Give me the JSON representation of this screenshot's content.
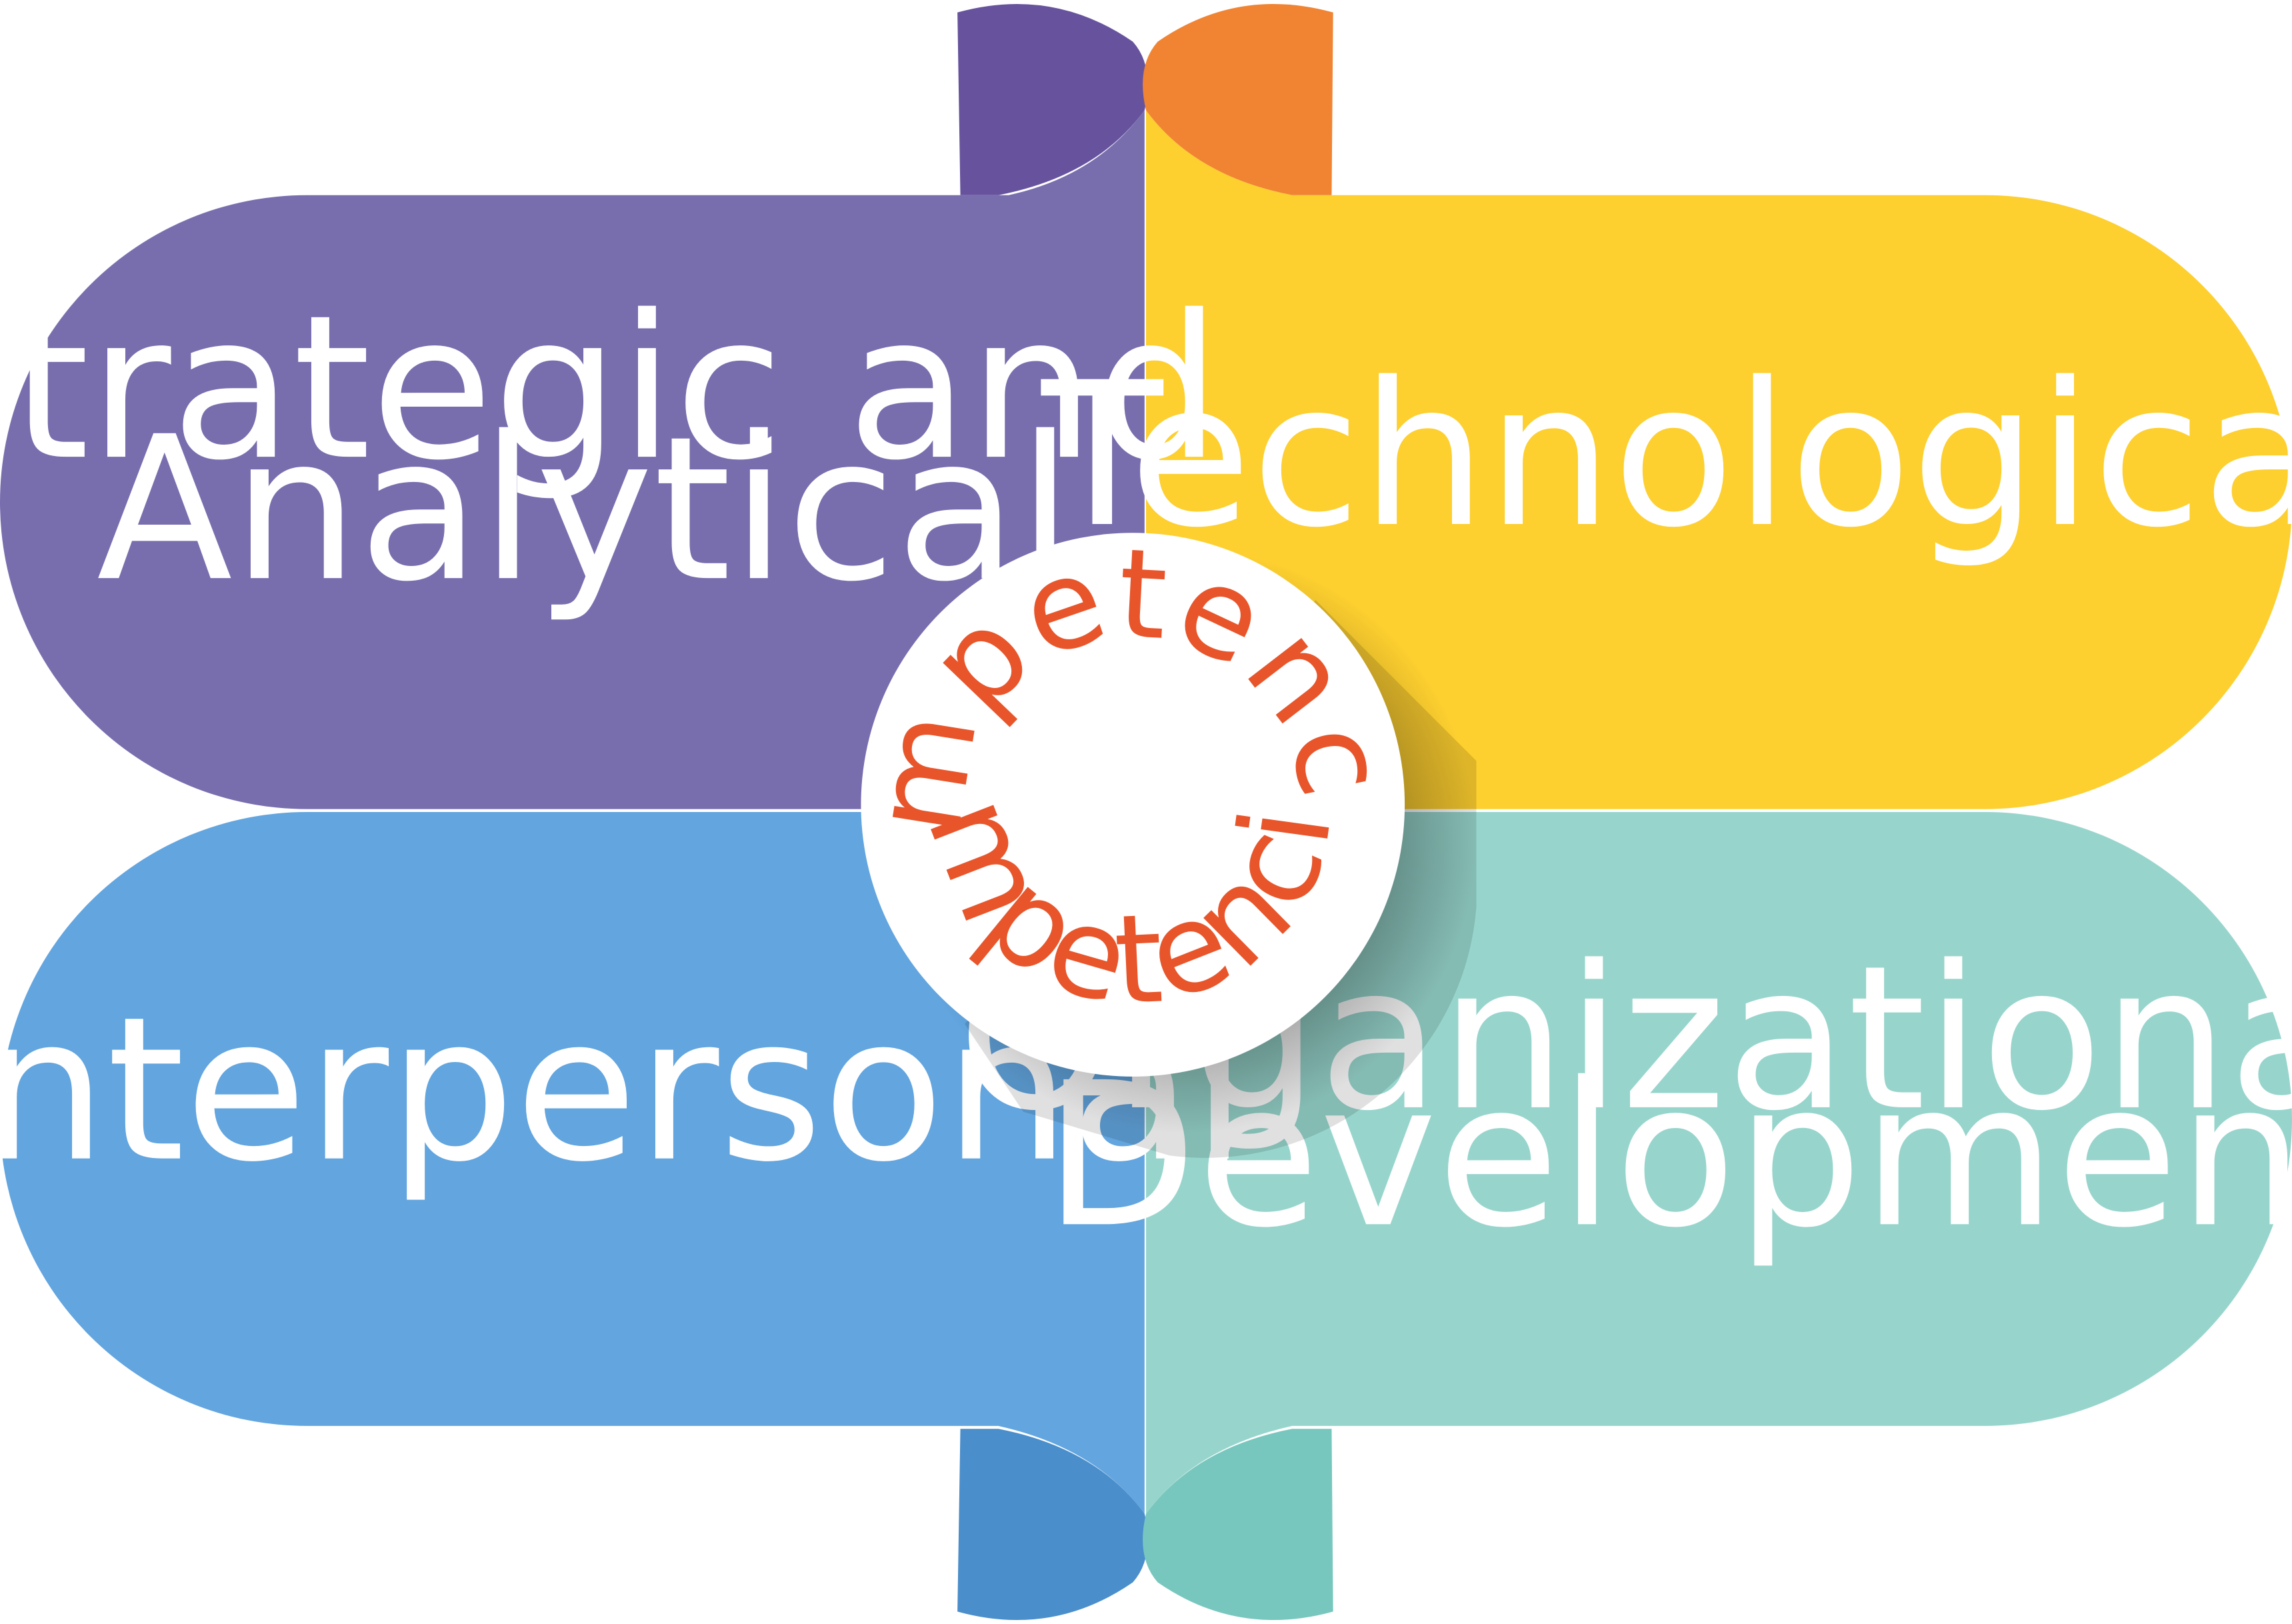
{
  "segments": [
    {
      "id": "strategic",
      "lines": [
        "Strategic and",
        "Analytical"
      ],
      "color": "#786EAE",
      "tab_color": "#67539D"
    },
    {
      "id": "technological",
      "lines": [
        "Technological"
      ],
      "color": "#FDCF2F",
      "tab_color": "#F08433"
    },
    {
      "id": "interpersonal",
      "lines": [
        "Interpersonal"
      ],
      "color": "#62A5DF",
      "tab_color": "#4A8ECB"
    },
    {
      "id": "organizational",
      "lines": [
        "Organizational",
        "Development"
      ],
      "color": "#97D5CC",
      "tab_color": "#78C7BE"
    }
  ],
  "center": {
    "ring_text_top": "competencies",
    "ring_text_bottom": "competencies",
    "text_color": "#E8552B",
    "fill": "#ffffff"
  }
}
